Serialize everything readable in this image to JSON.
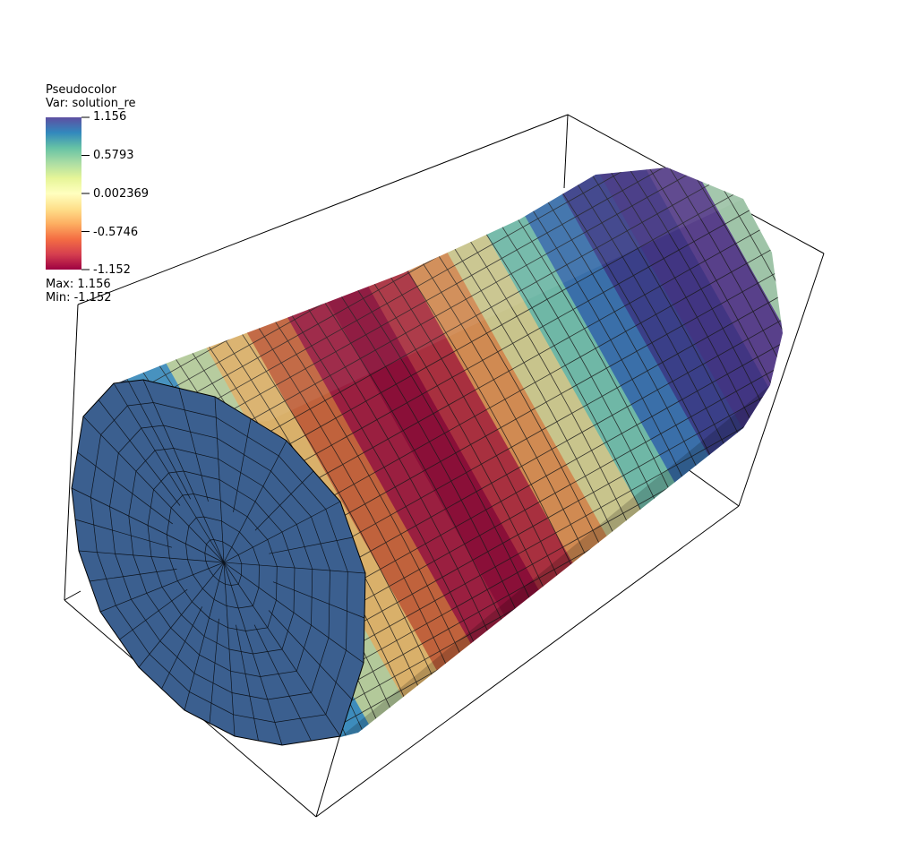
{
  "legend": {
    "plot_type": "Pseudocolor",
    "variable": "Var: solution_re",
    "ticks": [
      "1.156",
      "0.5793",
      "0.002369",
      "-0.5746",
      "-1.152"
    ],
    "max_label": "Max:  1.156",
    "min_label": "Min: -1.152",
    "colormap": [
      "#5e4fa2",
      "#3288bd",
      "#66c2a5",
      "#abdda4",
      "#e6f598",
      "#ffffbf",
      "#fee08b",
      "#fdae61",
      "#f46d43",
      "#d53e4f",
      "#9e0142"
    ]
  },
  "scene": {
    "object": "cylinder-mesh",
    "endcap_color": "#3b5f8f",
    "band_colors": [
      "#3b5f8f",
      "#3d8cbc",
      "#b3c99a",
      "#d9b06a",
      "#c0623c",
      "#9a1f40",
      "#8a0f38",
      "#a8303f",
      "#d08a52",
      "#c8c48c",
      "#6fb7a6",
      "#3a6fa9",
      "#3a3f88",
      "#413582",
      "#58408a",
      "#9fc4a8",
      "#d4d08e"
    ]
  }
}
